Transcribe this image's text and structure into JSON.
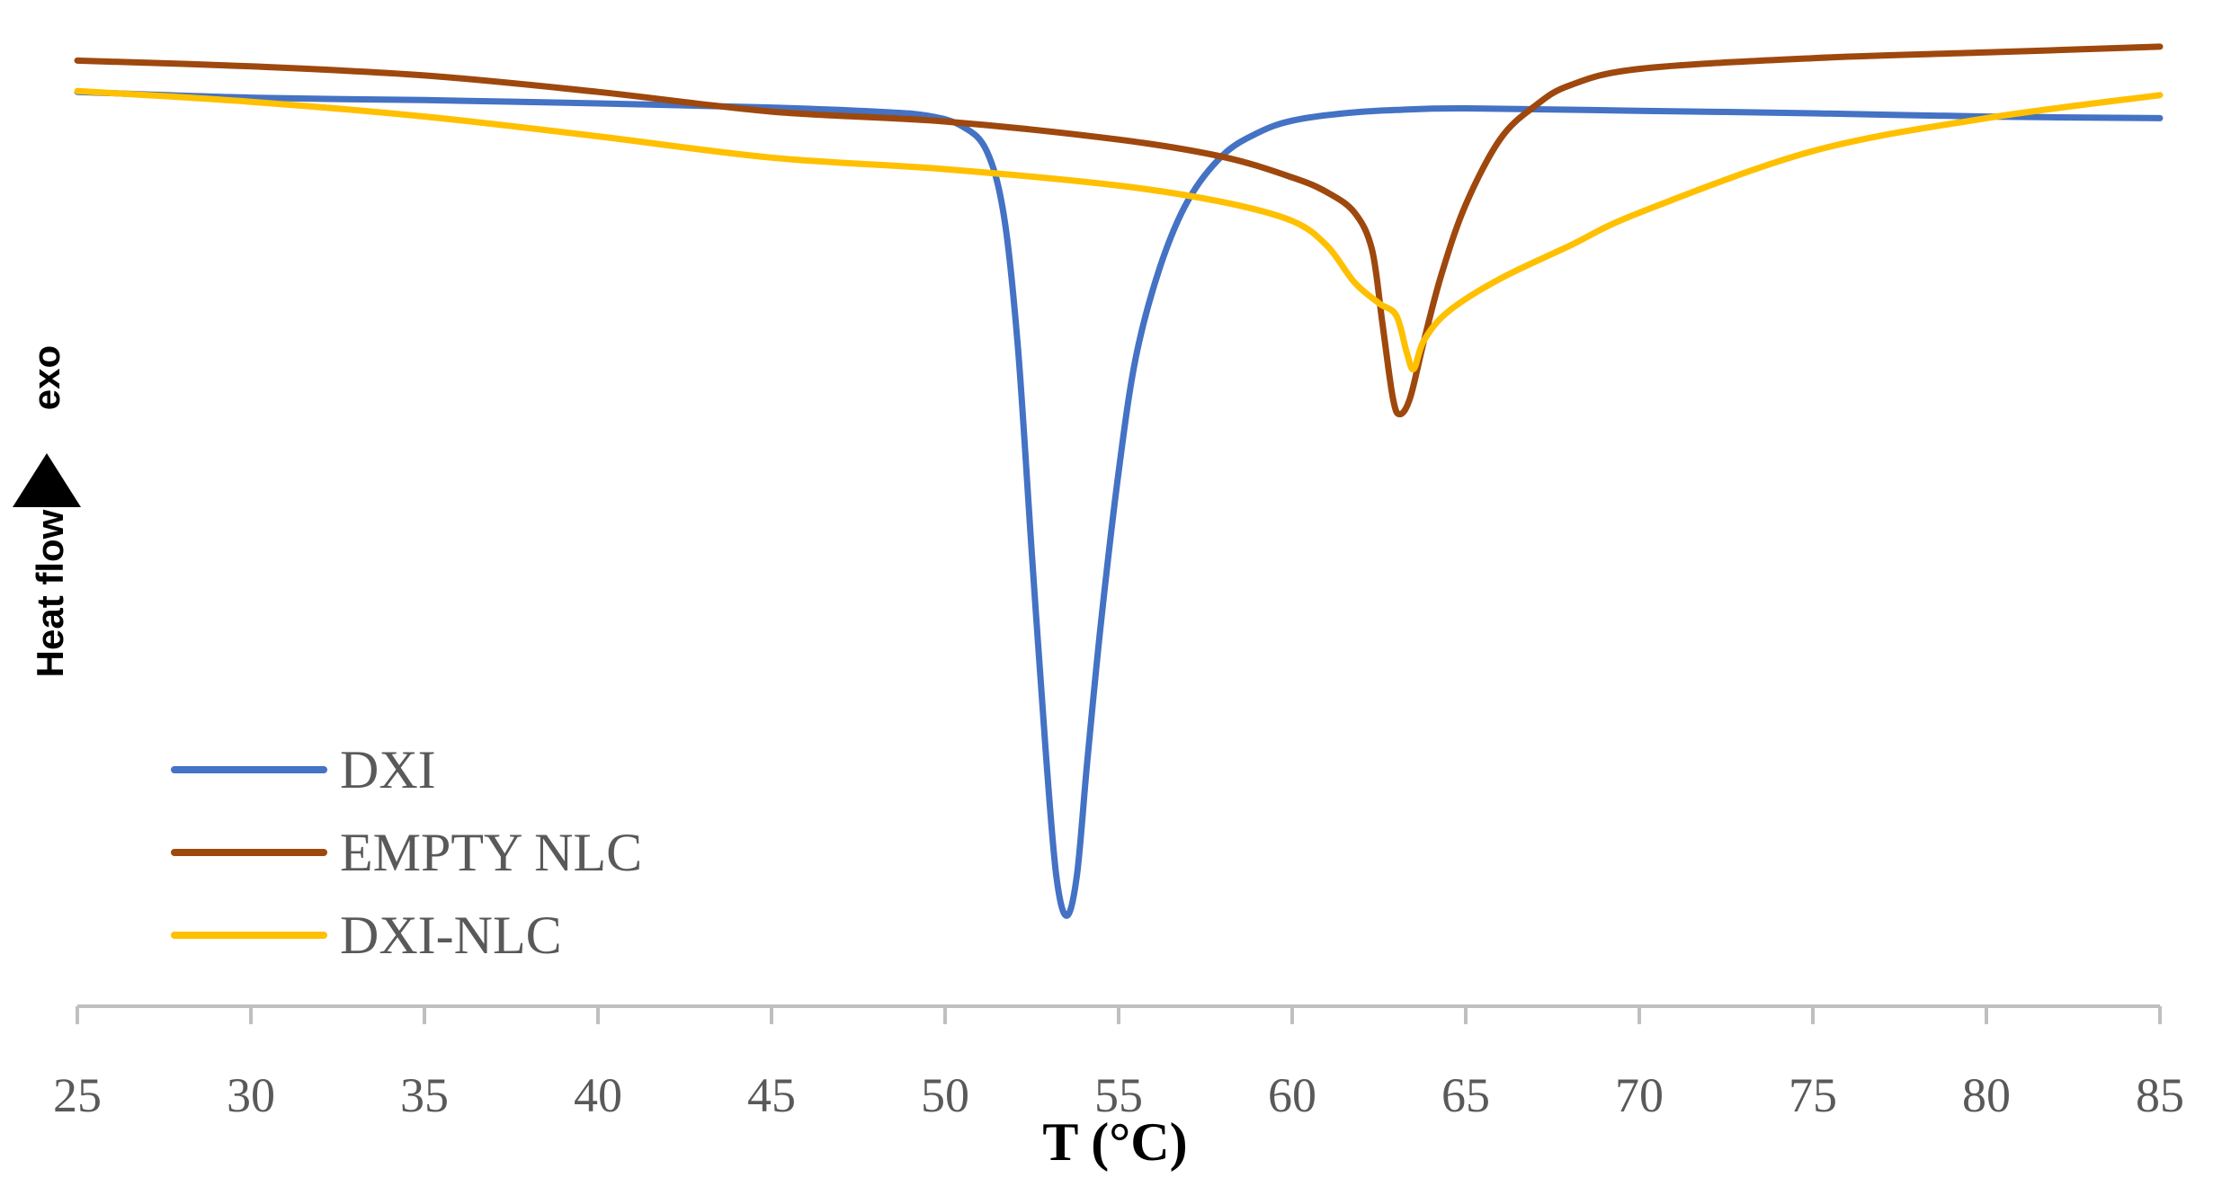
{
  "chart_data": {
    "type": "line",
    "xlabel": "T (°C)",
    "ylabel": "Heat flow",
    "ylabel_direction": "exo",
    "xlim": [
      25,
      85
    ],
    "ylim": [
      -10.5,
      1.3
    ],
    "xticks": [
      25,
      30,
      35,
      40,
      45,
      50,
      55,
      60,
      65,
      70,
      75,
      80,
      85
    ],
    "grid": false,
    "legend_position": "bottom-left",
    "series": [
      {
        "name": "DXI",
        "color": "#4472C4",
        "points": [
          [
            25,
            0.62
          ],
          [
            30,
            0.55
          ],
          [
            35,
            0.52
          ],
          [
            40,
            0.48
          ],
          [
            45,
            0.43
          ],
          [
            48,
            0.38
          ],
          [
            49.5,
            0.33
          ],
          [
            50.5,
            0.2
          ],
          [
            51.2,
            -0.1
          ],
          [
            51.7,
            -0.9
          ],
          [
            52.1,
            -2.5
          ],
          [
            52.5,
            -5.0
          ],
          [
            52.9,
            -7.4
          ],
          [
            53.2,
            -8.9
          ],
          [
            53.5,
            -9.4
          ],
          [
            53.8,
            -8.9
          ],
          [
            54.1,
            -7.5
          ],
          [
            54.5,
            -5.8
          ],
          [
            55,
            -4.0
          ],
          [
            55.5,
            -2.6
          ],
          [
            56.2,
            -1.5
          ],
          [
            57,
            -0.7
          ],
          [
            58,
            -0.15
          ],
          [
            59,
            0.12
          ],
          [
            60,
            0.27
          ],
          [
            61.5,
            0.36
          ],
          [
            63,
            0.4
          ],
          [
            65,
            0.42
          ],
          [
            70,
            0.39
          ],
          [
            75,
            0.36
          ],
          [
            80,
            0.32
          ],
          [
            85,
            0.3
          ]
        ]
      },
      {
        "name": "EMPTY NLC",
        "color": "#9E480E",
        "points": [
          [
            25,
            1.0
          ],
          [
            30,
            0.93
          ],
          [
            35,
            0.82
          ],
          [
            40,
            0.62
          ],
          [
            45,
            0.38
          ],
          [
            50,
            0.26
          ],
          [
            55,
            0.04
          ],
          [
            58,
            -0.17
          ],
          [
            60,
            -0.42
          ],
          [
            61,
            -0.6
          ],
          [
            61.8,
            -0.85
          ],
          [
            62.3,
            -1.3
          ],
          [
            62.6,
            -2.2
          ],
          [
            62.9,
            -3.1
          ],
          [
            63.1,
            -3.3
          ],
          [
            63.4,
            -3.1
          ],
          [
            63.8,
            -2.4
          ],
          [
            64.3,
            -1.6
          ],
          [
            65,
            -0.75
          ],
          [
            66,
            0.05
          ],
          [
            67,
            0.45
          ],
          [
            68,
            0.7
          ],
          [
            70,
            0.9
          ],
          [
            75,
            1.03
          ],
          [
            80,
            1.1
          ],
          [
            85,
            1.17
          ]
        ]
      },
      {
        "name": "DXI-NLC",
        "color": "#FFC000",
        "points": [
          [
            25,
            0.63
          ],
          [
            30,
            0.5
          ],
          [
            35,
            0.32
          ],
          [
            40,
            0.08
          ],
          [
            45,
            -0.18
          ],
          [
            50,
            -0.32
          ],
          [
            55,
            -0.52
          ],
          [
            58,
            -0.72
          ],
          [
            60,
            -0.95
          ],
          [
            61,
            -1.25
          ],
          [
            61.8,
            -1.7
          ],
          [
            62.5,
            -1.95
          ],
          [
            63,
            -2.1
          ],
          [
            63.3,
            -2.55
          ],
          [
            63.5,
            -2.75
          ],
          [
            63.8,
            -2.4
          ],
          [
            64.5,
            -2.05
          ],
          [
            66,
            -1.65
          ],
          [
            68,
            -1.25
          ],
          [
            70,
            -0.85
          ],
          [
            75,
            -0.1
          ],
          [
            80,
            0.3
          ],
          [
            85,
            0.58
          ]
        ]
      }
    ]
  }
}
